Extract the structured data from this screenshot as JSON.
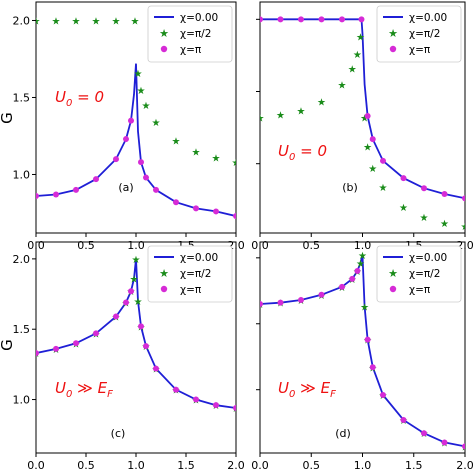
{
  "figure": {
    "ylabel": "G"
  },
  "chart_data": [
    {
      "panel": "(a)",
      "type": "line",
      "annotation": "U0 = 0",
      "xlim": [
        0.0,
        2.0
      ],
      "ylim": [
        0.62,
        2.12
      ],
      "xticks": [
        "0.0",
        "0.5",
        "1.0",
        "1.5",
        "2.0"
      ],
      "yticks": [
        "1.0",
        "1.5",
        "2.0"
      ],
      "legend_position": "top-right",
      "series": [
        {
          "name": "χ=0.00",
          "style": "line",
          "color": "#1f1fd6",
          "x": [
            0.0,
            0.2,
            0.4,
            0.6,
            0.8,
            0.9,
            0.95,
            0.98,
            1.0,
            1.02,
            1.05,
            1.1,
            1.2,
            1.4,
            1.6,
            1.8,
            2.0
          ],
          "y": [
            0.86,
            0.87,
            0.9,
            0.97,
            1.1,
            1.23,
            1.35,
            1.52,
            1.72,
            1.28,
            1.08,
            0.98,
            0.9,
            0.82,
            0.78,
            0.76,
            0.73
          ]
        },
        {
          "name": "χ=π/2",
          "style": "star",
          "color": "#1a8c1a",
          "x": [
            0.0,
            0.2,
            0.4,
            0.6,
            0.8,
            0.99,
            1.02,
            1.05,
            1.1,
            1.2,
            1.4,
            1.6,
            1.8,
            2.0
          ],
          "y": [
            2.0,
            2.0,
            2.0,
            2.0,
            2.0,
            2.0,
            1.66,
            1.55,
            1.45,
            1.34,
            1.22,
            1.15,
            1.11,
            1.08
          ]
        },
        {
          "name": "χ=π",
          "style": "dot",
          "color": "#d62bd6",
          "x": [
            0.0,
            0.2,
            0.4,
            0.6,
            0.8,
            0.9,
            0.95,
            1.05,
            1.1,
            1.2,
            1.4,
            1.6,
            1.8,
            2.0
          ],
          "y": [
            0.86,
            0.87,
            0.9,
            0.97,
            1.1,
            1.23,
            1.35,
            1.08,
            0.98,
            0.9,
            0.82,
            0.78,
            0.76,
            0.73
          ]
        }
      ]
    },
    {
      "panel": "(b)",
      "type": "line",
      "annotation": "U0 = 0",
      "xlim": [
        0.0,
        2.0
      ],
      "ylim": [
        0.52,
        2.12
      ],
      "xticks": [
        "0.0",
        "0.5",
        "1.0",
        "1.5",
        "2.0"
      ],
      "yticks": [],
      "legend_position": "top-right",
      "series": [
        {
          "name": "χ=0.00",
          "style": "line",
          "color": "#1f1fd6",
          "x": [
            0.0,
            0.2,
            0.4,
            0.6,
            0.8,
            0.99,
            1.0,
            1.02,
            1.05,
            1.1,
            1.2,
            1.4,
            1.6,
            1.8,
            2.0
          ],
          "y": [
            2.0,
            2.0,
            2.0,
            2.0,
            2.0,
            2.0,
            1.9,
            1.55,
            1.33,
            1.17,
            1.02,
            0.9,
            0.83,
            0.79,
            0.76
          ]
        },
        {
          "name": "χ=π/2",
          "style": "star",
          "color": "#1a8c1a",
          "x": [
            0.0,
            0.2,
            0.4,
            0.6,
            0.8,
            0.9,
            0.95,
            0.98,
            1.02,
            1.05,
            1.1,
            1.2,
            1.4,
            1.6,
            1.8,
            2.0
          ],
          "y": [
            1.32,
            1.34,
            1.37,
            1.43,
            1.55,
            1.66,
            1.76,
            1.88,
            1.32,
            1.12,
            0.97,
            0.84,
            0.7,
            0.63,
            0.59,
            0.57
          ]
        },
        {
          "name": "χ=π",
          "style": "dot",
          "color": "#d62bd6",
          "x": [
            0.0,
            0.2,
            0.4,
            0.6,
            0.8,
            0.99,
            1.05,
            1.1,
            1.2,
            1.4,
            1.6,
            1.8,
            2.0
          ],
          "y": [
            2.0,
            2.0,
            2.0,
            2.0,
            2.0,
            2.0,
            1.33,
            1.17,
            1.02,
            0.9,
            0.83,
            0.79,
            0.76
          ]
        }
      ]
    },
    {
      "panel": "(c)",
      "type": "line",
      "annotation": "U0 ≫ EF",
      "xlim": [
        0.0,
        2.0
      ],
      "ylim": [
        0.62,
        2.12
      ],
      "xticks": [
        "0.0",
        "0.5",
        "1.0",
        "1.5",
        "2.0"
      ],
      "yticks": [
        "1.0",
        "1.5",
        "2.0"
      ],
      "legend_position": "top-right",
      "series": [
        {
          "name": "χ=0.00",
          "style": "line",
          "color": "#1f1fd6",
          "x": [
            0.0,
            0.2,
            0.4,
            0.6,
            0.8,
            0.9,
            0.95,
            0.98,
            1.0,
            1.02,
            1.05,
            1.1,
            1.2,
            1.4,
            1.6,
            1.8,
            2.0
          ],
          "y": [
            1.33,
            1.36,
            1.4,
            1.47,
            1.59,
            1.69,
            1.77,
            1.86,
            2.0,
            1.7,
            1.52,
            1.38,
            1.22,
            1.07,
            1.0,
            0.96,
            0.94
          ]
        },
        {
          "name": "χ=π/2",
          "style": "star",
          "color": "#1a8c1a",
          "x": [
            0.0,
            0.2,
            0.4,
            0.6,
            0.8,
            0.9,
            0.95,
            0.98,
            1.0,
            1.02,
            1.05,
            1.1,
            1.2,
            1.4,
            1.6,
            1.8,
            2.0
          ],
          "y": [
            1.33,
            1.36,
            1.4,
            1.47,
            1.59,
            1.69,
            1.77,
            1.86,
            2.0,
            1.7,
            1.52,
            1.38,
            1.22,
            1.07,
            1.0,
            0.96,
            0.94
          ]
        },
        {
          "name": "χ=π",
          "style": "dot",
          "color": "#d62bd6",
          "x": [
            0.0,
            0.2,
            0.4,
            0.6,
            0.8,
            0.9,
            0.95,
            1.05,
            1.1,
            1.2,
            1.4,
            1.6,
            1.8,
            2.0
          ],
          "y": [
            1.33,
            1.36,
            1.4,
            1.47,
            1.59,
            1.69,
            1.77,
            1.52,
            1.38,
            1.22,
            1.07,
            1.0,
            0.96,
            0.94
          ]
        }
      ]
    },
    {
      "panel": "(d)",
      "type": "line",
      "annotation": "U0 ≫ EF",
      "xlim": [
        0.0,
        2.0
      ],
      "ylim": [
        0.52,
        2.12
      ],
      "xticks": [
        "0.0",
        "0.5",
        "1.0",
        "1.5",
        "2.0"
      ],
      "yticks": [],
      "legend_position": "top-right",
      "series": [
        {
          "name": "χ=0.00",
          "style": "line",
          "color": "#1f1fd6",
          "x": [
            0.0,
            0.2,
            0.4,
            0.6,
            0.8,
            0.9,
            0.95,
            0.98,
            1.0,
            1.02,
            1.05,
            1.1,
            1.2,
            1.4,
            1.6,
            1.8,
            2.0
          ],
          "y": [
            1.65,
            1.66,
            1.68,
            1.72,
            1.78,
            1.84,
            1.9,
            1.96,
            2.02,
            1.63,
            1.38,
            1.17,
            0.96,
            0.77,
            0.67,
            0.6,
            0.57
          ]
        },
        {
          "name": "χ=π/2",
          "style": "star",
          "color": "#1a8c1a",
          "x": [
            0.0,
            0.2,
            0.4,
            0.6,
            0.8,
            0.9,
            0.95,
            0.98,
            1.0,
            1.02,
            1.05,
            1.1,
            1.2,
            1.4,
            1.6,
            1.8,
            2.0
          ],
          "y": [
            1.65,
            1.66,
            1.68,
            1.72,
            1.78,
            1.84,
            1.9,
            1.96,
            2.02,
            1.63,
            1.38,
            1.17,
            0.96,
            0.77,
            0.67,
            0.6,
            0.57
          ]
        },
        {
          "name": "χ=π",
          "style": "dot",
          "color": "#d62bd6",
          "x": [
            0.0,
            0.2,
            0.4,
            0.6,
            0.8,
            0.9,
            0.95,
            1.05,
            1.1,
            1.2,
            1.4,
            1.6,
            1.8,
            2.0
          ],
          "y": [
            1.65,
            1.66,
            1.68,
            1.72,
            1.78,
            1.84,
            1.9,
            1.38,
            1.17,
            0.96,
            0.77,
            0.67,
            0.6,
            0.57
          ]
        }
      ]
    }
  ]
}
